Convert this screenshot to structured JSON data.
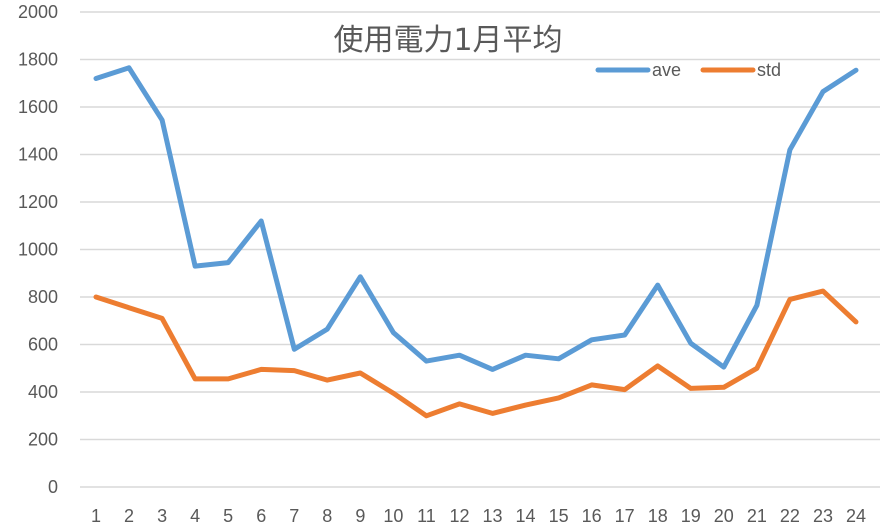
{
  "chart_data": {
    "type": "line",
    "title": "使用電力1月平均",
    "xlabel": "",
    "ylabel": "",
    "x": [
      "1",
      "2",
      "3",
      "4",
      "5",
      "6",
      "7",
      "8",
      "9",
      "10",
      "11",
      "12",
      "13",
      "14",
      "15",
      "16",
      "17",
      "18",
      "19",
      "20",
      "21",
      "22",
      "23",
      "24"
    ],
    "series": [
      {
        "name": "ave",
        "color": "#5b9bd5",
        "values": [
          1720,
          1765,
          1545,
          930,
          945,
          1120,
          580,
          665,
          885,
          650,
          530,
          555,
          495,
          555,
          540,
          620,
          640,
          850,
          605,
          505,
          765,
          1420,
          1665,
          1755
        ]
      },
      {
        "name": "std",
        "color": "#ed7d31",
        "values": [
          800,
          755,
          710,
          455,
          455,
          495,
          490,
          450,
          480,
          395,
          300,
          350,
          310,
          345,
          375,
          430,
          410,
          510,
          415,
          420,
          500,
          790,
          825,
          695
        ]
      }
    ],
    "ylim": [
      0,
      2000
    ],
    "yticks": [
      0,
      200,
      400,
      600,
      800,
      1000,
      1200,
      1400,
      1600,
      1800,
      2000
    ],
    "grid": true,
    "legend_position": "top-right"
  }
}
